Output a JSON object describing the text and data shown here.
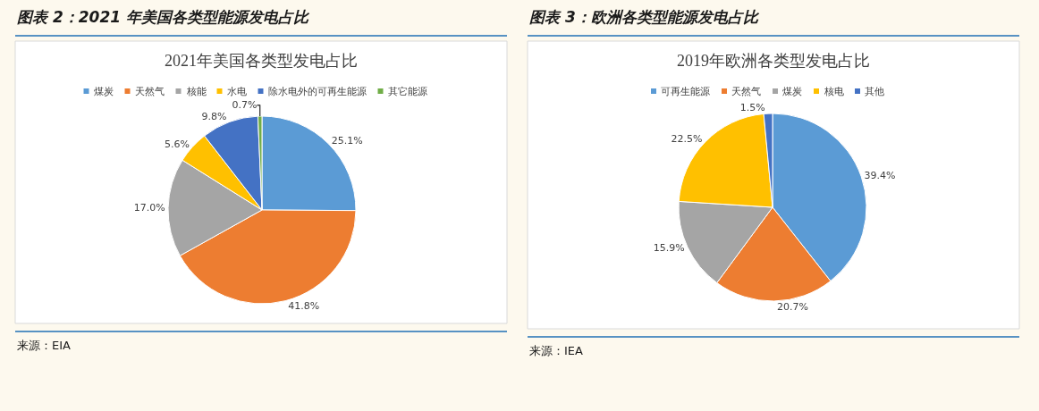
{
  "chart_data": [
    {
      "type": "pie",
      "title": "图表 2：2021 年美国各类型能源发电占比",
      "subtitle": "2021年美国各类型发电占比",
      "categories": [
        "煤炭",
        "天然气",
        "核能",
        "水电",
        "除水电外的可再生能源",
        "其它能源"
      ],
      "values": [
        25.1,
        41.8,
        17.0,
        5.6,
        9.8,
        0.7
      ],
      "colors": [
        "#5b9bd5",
        "#ed7d31",
        "#a5a5a5",
        "#ffc000",
        "#4472c4",
        "#70ad47"
      ],
      "value_labels": [
        "25.1%",
        "41.8%",
        "17.0%",
        "5.6%",
        "9.8%",
        "0.7%"
      ],
      "legend": "top",
      "annotations": [
        "来源：EIA"
      ]
    },
    {
      "type": "pie",
      "title": "图表 3：欧洲各类型能源发电占比",
      "subtitle": "2019年欧洲各类型发电占比",
      "categories": [
        "可再生能源",
        "天然气",
        "煤炭",
        "核电",
        "其他"
      ],
      "values": [
        39.4,
        20.7,
        15.9,
        22.5,
        1.5
      ],
      "colors": [
        "#5b9bd5",
        "#ed7d31",
        "#a5a5a5",
        "#ffc000",
        "#4472c4"
      ],
      "value_labels": [
        "39.4%",
        "20.7%",
        "15.9%",
        "22.5%",
        "1.5%"
      ],
      "legend": "top",
      "annotations": [
        "来源：IEA"
      ]
    }
  ]
}
